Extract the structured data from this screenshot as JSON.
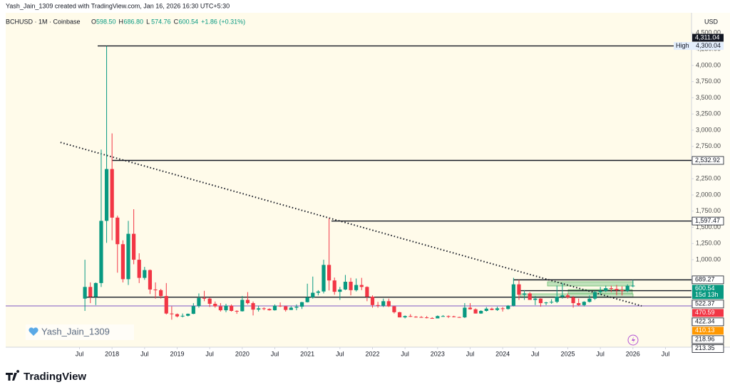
{
  "header": {
    "credit": "Yash_Jain_1309 created with TradingView.com, Jan 16, 2026 16:30 UTC+5:30",
    "symbol": "BCHUSD · 1M · Coinbase",
    "ohlc": [
      {
        "key": "O",
        "value": "598.50"
      },
      {
        "key": "H",
        "value": "686.80"
      },
      {
        "key": "L",
        "value": "574.76"
      },
      {
        "key": "C",
        "value": "600.54"
      }
    ],
    "change": "+1.86 (+0.31%)",
    "watermark": "Yash_Jain_1309",
    "logo": "TradingView"
  },
  "chart_data": {
    "type": "candlestick",
    "currency": "USD",
    "up_color": "#089981",
    "down_color": "#f23645",
    "xlim": [
      -14.6,
      111.8
    ],
    "ylim": [
      -350,
      4570
    ],
    "xticks": [
      {
        "value": -1,
        "label": "Jul"
      },
      {
        "value": 5,
        "label": "2018"
      },
      {
        "value": 11,
        "label": "Jul"
      },
      {
        "value": 17,
        "label": "2019"
      },
      {
        "value": 23,
        "label": "Jul"
      },
      {
        "value": 29,
        "label": "2020"
      },
      {
        "value": 35,
        "label": "Jul"
      },
      {
        "value": 41,
        "label": "2021"
      },
      {
        "value": 47,
        "label": "Jul"
      },
      {
        "value": 53,
        "label": "2022"
      },
      {
        "value": 59,
        "label": "Jul"
      },
      {
        "value": 65,
        "label": "2023"
      },
      {
        "value": 71,
        "label": "Jul"
      },
      {
        "value": 77,
        "label": "2024"
      },
      {
        "value": 83,
        "label": "Jul"
      },
      {
        "value": 89,
        "label": "2025"
      },
      {
        "value": 95,
        "label": "Jul"
      },
      {
        "value": 101,
        "label": "2026"
      },
      {
        "value": 107,
        "label": "Jul"
      }
    ],
    "yticks": [
      {
        "value": 4500,
        "label": "4,500.00"
      },
      {
        "value": 4250,
        "label": "4,250.00"
      },
      {
        "value": 4000,
        "label": "4,000.00"
      },
      {
        "value": 3750,
        "label": "3,750.00"
      },
      {
        "value": 3500,
        "label": "3,500.00"
      },
      {
        "value": 3250,
        "label": "3,250.00"
      },
      {
        "value": 3000,
        "label": "3,000.00"
      },
      {
        "value": 2750,
        "label": "2,750.00"
      },
      {
        "value": 2500,
        "label": "2,500.00"
      },
      {
        "value": 2250,
        "label": "2,250.00"
      },
      {
        "value": 2000,
        "label": "2,000.00"
      },
      {
        "value": 1750,
        "label": "1,750.00"
      },
      {
        "value": 1500,
        "label": "1,500.00"
      },
      {
        "value": 1250,
        "label": "1,250.00"
      },
      {
        "value": 1000,
        "label": "1,000.00"
      }
    ],
    "open": [
      400,
      580,
      430,
      640,
      1600,
      2400,
      1650,
      1240,
      700,
      1400,
      1000,
      720,
      840,
      540,
      530,
      440,
      170,
      160,
      125,
      135,
      165,
      285,
      410,
      400,
      320,
      280,
      220,
      290,
      210,
      205,
      380,
      330,
      230,
      250,
      240,
      220,
      290,
      280,
      225,
      260,
      275,
      345,
      420,
      490,
      510,
      920,
      680,
      505,
      540,
      660,
      530,
      610,
      580,
      430,
      300,
      290,
      360,
      280,
      190,
      110,
      130,
      120,
      115,
      110,
      100,
      95,
      130,
      130,
      125,
      115,
      110,
      260,
      235,
      170,
      210,
      245,
      225,
      250,
      240,
      290,
      620,
      460,
      480,
      380,
      400,
      330,
      340,
      350,
      430,
      450,
      420,
      330,
      300,
      350,
      400,
      500,
      520,
      560,
      550,
      530,
      520,
      598.5
    ],
    "high": [
      1000,
      650,
      650,
      2700,
      4300.04,
      2950,
      1680,
      1300,
      1600,
      1780,
      1100,
      890,
      850,
      650,
      550,
      640,
      280,
      170,
      170,
      170,
      330,
      480,
      520,
      420,
      355,
      330,
      320,
      310,
      220,
      440,
      500,
      355,
      290,
      265,
      250,
      310,
      340,
      290,
      280,
      310,
      350,
      630,
      740,
      530,
      1000,
      1640,
      725,
      580,
      765,
      720,
      710,
      720,
      590,
      450,
      350,
      400,
      400,
      290,
      195,
      140,
      160,
      130,
      130,
      130,
      112,
      140,
      145,
      140,
      135,
      120,
      330,
      330,
      250,
      220,
      270,
      260,
      275,
      270,
      300,
      720,
      690,
      530,
      500,
      440,
      405,
      350,
      390,
      600,
      640,
      480,
      440,
      400,
      360,
      450,
      520,
      580,
      600,
      600,
      610,
      590,
      620,
      686.8
    ],
    "low": [
      210,
      330,
      300,
      580,
      1260,
      1300,
      800,
      650,
      610,
      930,
      640,
      690,
      470,
      400,
      400,
      155,
      75,
      110,
      110,
      125,
      160,
      260,
      360,
      270,
      260,
      200,
      190,
      200,
      165,
      200,
      310,
      140,
      200,
      220,
      215,
      215,
      270,
      200,
      225,
      220,
      240,
      340,
      400,
      450,
      480,
      525,
      460,
      380,
      530,
      450,
      510,
      530,
      360,
      260,
      260,
      270,
      270,
      170,
      110,
      95,
      115,
      105,
      105,
      95,
      90,
      95,
      120,
      100,
      110,
      105,
      100,
      230,
      170,
      165,
      200,
      220,
      210,
      200,
      230,
      280,
      380,
      380,
      380,
      300,
      275,
      300,
      320,
      330,
      400,
      400,
      260,
      285,
      280,
      340,
      380,
      460,
      500,
      500,
      450,
      450,
      500,
      574.76
    ],
    "close": [
      580,
      430,
      640,
      1600,
      2400,
      1650,
      1240,
      700,
      1400,
      1000,
      720,
      840,
      540,
      530,
      440,
      170,
      160,
      125,
      135,
      165,
      285,
      410,
      400,
      320,
      280,
      220,
      290,
      210,
      205,
      380,
      330,
      230,
      250,
      240,
      220,
      290,
      280,
      225,
      260,
      275,
      345,
      420,
      490,
      510,
      920,
      680,
      505,
      540,
      660,
      530,
      610,
      580,
      430,
      300,
      290,
      360,
      280,
      190,
      110,
      130,
      120,
      115,
      110,
      100,
      95,
      130,
      130,
      125,
      115,
      110,
      260,
      235,
      170,
      210,
      245,
      225,
      250,
      240,
      290,
      620,
      460,
      480,
      380,
      400,
      330,
      340,
      350,
      430,
      450,
      420,
      330,
      300,
      350,
      400,
      500,
      520,
      560,
      550,
      530,
      520,
      598.5,
      600.54
    ],
    "levels": [
      4300.04,
      2532.92,
      1597.47,
      689.27,
      522.37,
      422.34
    ],
    "high_label": {
      "text": "High",
      "value": 4300.04,
      "label": "4,300.04"
    },
    "trendline": {
      "x": [
        -4.5,
        102.6
      ],
      "values": [
        2811,
        287
      ]
    },
    "price_labels": [
      {
        "value": 4311.04,
        "label": "4,311.04",
        "bg": "#131722",
        "fg": "#ffffff"
      },
      {
        "value": 2532.92,
        "label": "2,532.92",
        "bg": "#ffffff",
        "fg": "#131722"
      },
      {
        "value": 1597.47,
        "label": "1,597.47",
        "bg": "#ffffff",
        "fg": "#131722"
      },
      {
        "value": 689.27,
        "label": "689.27",
        "bg": "#ffffff",
        "fg": "#131722"
      },
      {
        "value": 600.54,
        "label": "600.54",
        "bg": "#089981",
        "fg": "#ffffff",
        "countdown": "15d 13h"
      },
      {
        "value": 522.37,
        "label": "522.37",
        "bg": "#ffffff",
        "fg": "#131722"
      },
      {
        "value": 470.59,
        "label": "470.59",
        "bg": "#f23645",
        "fg": "#ffffff"
      },
      {
        "value": 422.34,
        "label": "422.34",
        "bg": "#ffffff",
        "fg": "#131722"
      },
      {
        "value": 410.13,
        "label": "410.13",
        "bg": "#ff9800",
        "fg": "#ffffff"
      },
      {
        "value": 218.96,
        "label": "218.96",
        "bg": "#ffffff",
        "fg": "#131722"
      },
      {
        "value": 213.35,
        "label": "213.35",
        "bg": "#ffffff",
        "fg": "#131722"
      }
    ]
  }
}
